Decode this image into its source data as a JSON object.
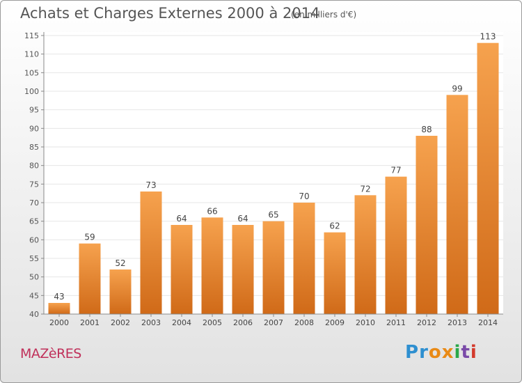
{
  "title": "Achats et Charges Externes 2000 à 2014",
  "unit": "(en milliers d'€)",
  "commune": "MAZèRES",
  "logo": {
    "text": "Proxiti",
    "letters": [
      {
        "ch": "P",
        "color": "#2e8fd0"
      },
      {
        "ch": "r",
        "color": "#2e8fd0"
      },
      {
        "ch": "o",
        "color": "#e98a16"
      },
      {
        "ch": "x",
        "color": "#e98a16"
      },
      {
        "ch": "i",
        "color": "#2aa84a"
      },
      {
        "ch": "t",
        "color": "#7a4aa8"
      },
      {
        "ch": "i",
        "color": "#d33a2c"
      }
    ]
  },
  "colors": {
    "bar_top": "#f6a24e",
    "bar_bottom": "#d06a18",
    "grid": "#e6e6e6"
  },
  "chart_data": {
    "type": "bar",
    "categories": [
      "2000",
      "2001",
      "2002",
      "2003",
      "2004",
      "2005",
      "2006",
      "2007",
      "2008",
      "2009",
      "2010",
      "2011",
      "2012",
      "2013",
      "2014"
    ],
    "values": [
      43,
      59,
      52,
      73,
      64,
      66,
      64,
      65,
      70,
      62,
      72,
      77,
      88,
      99,
      113
    ],
    "ylim": [
      40,
      115
    ],
    "yticks": [
      40,
      45,
      50,
      55,
      60,
      65,
      70,
      75,
      80,
      85,
      90,
      95,
      100,
      105,
      110,
      115
    ],
    "grid": true,
    "data_labels": true
  }
}
